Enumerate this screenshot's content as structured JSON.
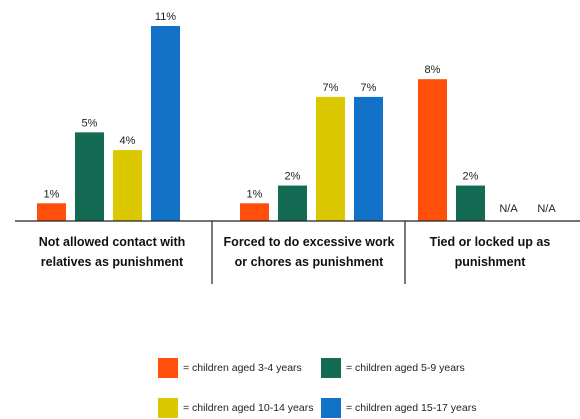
{
  "chart_data": {
    "type": "bar",
    "categories": [
      "Not allowed contact with relatives as punishment",
      "Forced to do excessive work or chores as punishment",
      "Tied or locked up as punishment"
    ],
    "category_lines": [
      [
        "Not allowed contact with",
        "relatives as punishment"
      ],
      [
        "Forced to do excessive work",
        "or chores as punishment"
      ],
      [
        "Tied or locked up as",
        "punishment"
      ]
    ],
    "series": [
      {
        "name": "= children aged 3-4 years",
        "color": "#ff4f0a",
        "values": [
          1,
          1,
          8
        ],
        "labels": [
          "1%",
          "1%",
          "8%"
        ]
      },
      {
        "name": "= children aged 5-9 years",
        "color": "#146b53",
        "values": [
          5,
          2,
          2
        ],
        "labels": [
          "5%",
          "2%",
          "2%"
        ]
      },
      {
        "name": "= children aged 10-14 years",
        "color": "#dcc800",
        "values": [
          4,
          7,
          null
        ],
        "labels": [
          "4%",
          "7%",
          "N/A"
        ]
      },
      {
        "name": "= children aged 15-17 years",
        "color": "#1272c8",
        "values": [
          11,
          7,
          null
        ],
        "labels": [
          "11%",
          "7%",
          "N/A"
        ]
      }
    ],
    "ylim": [
      0,
      11
    ],
    "title": "",
    "xlabel": "",
    "ylabel": ""
  }
}
